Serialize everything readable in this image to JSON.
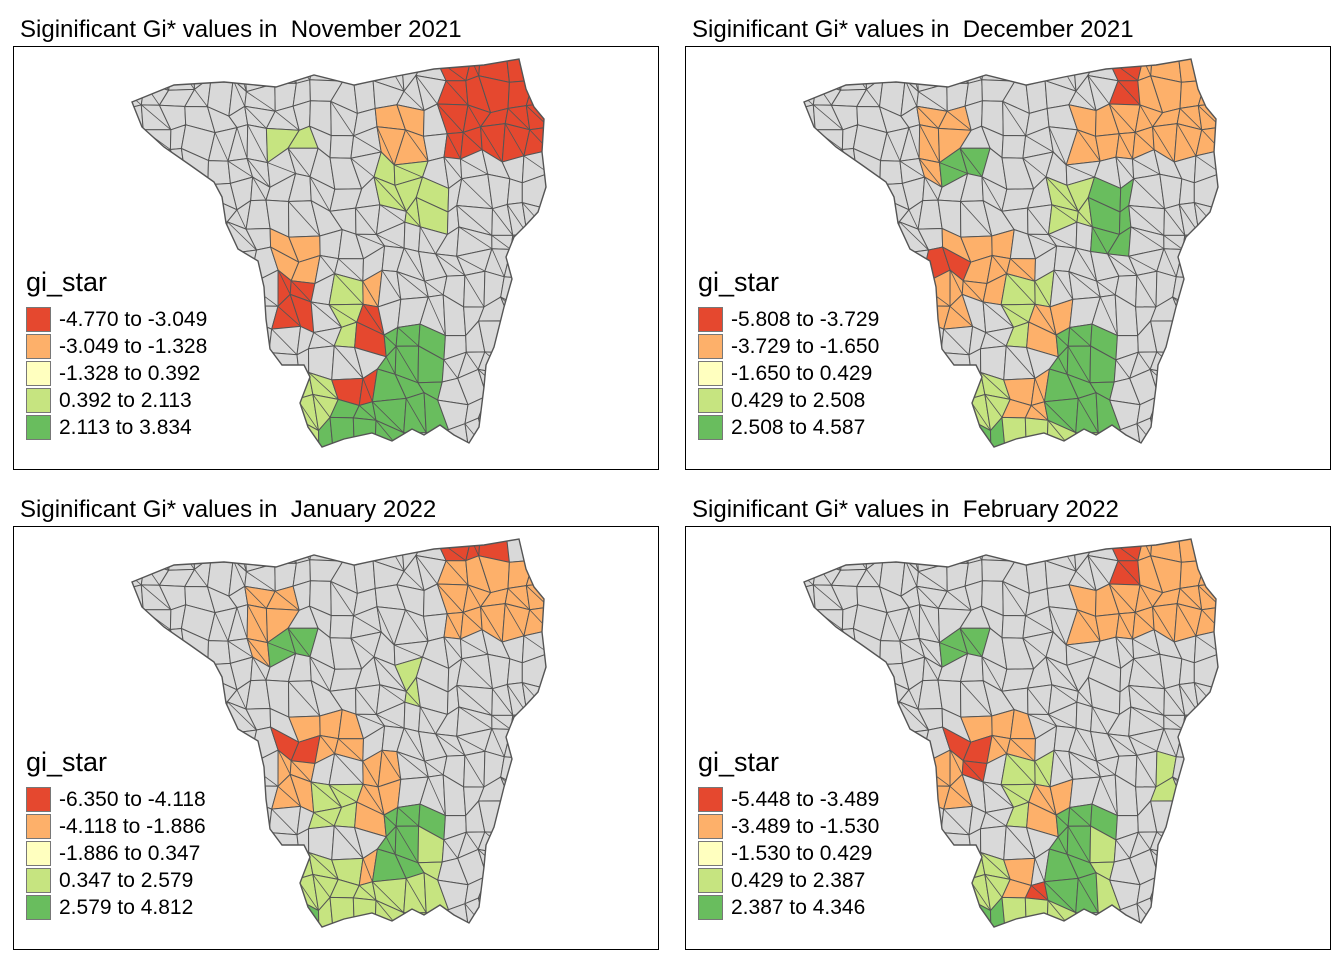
{
  "colors": {
    "land": "#d9d9d9",
    "border": "#555555",
    "bins": [
      "#e5482f",
      "#fdb06a",
      "#ffffbf",
      "#c6e480",
      "#69bd5e"
    ]
  },
  "panels": [
    {
      "title": "Siginificant Gi* values in  November 2021",
      "legend_title": "gi_star",
      "legend": [
        "-4.770 to -3.049",
        "-3.049 to -1.328",
        "-1.328 to 0.392",
        "0.392 to 2.113",
        "2.113 to 3.834"
      ]
    },
    {
      "title": "Siginificant Gi* values in  December 2021",
      "legend_title": "gi_star",
      "legend": [
        "-5.808 to -3.729",
        "-3.729 to -1.650",
        "-1.650 to 0.429",
        "0.429 to 2.508",
        "2.508 to 4.587"
      ]
    },
    {
      "title": "Siginificant Gi* values in  January 2022",
      "legend_title": "gi_star",
      "legend": [
        "-6.350 to -4.118",
        "-4.118 to -1.886",
        "-1.886 to 0.347",
        "0.347 to 2.579",
        "2.579 to 4.812"
      ]
    },
    {
      "title": "Siginificant Gi* values in  February 2022",
      "legend_title": "gi_star",
      "legend": [
        "-5.448 to -3.489",
        "-3.489 to -1.530",
        "-1.530 to 0.429",
        "0.429 to 2.387",
        "2.387 to 4.346"
      ]
    }
  ]
}
